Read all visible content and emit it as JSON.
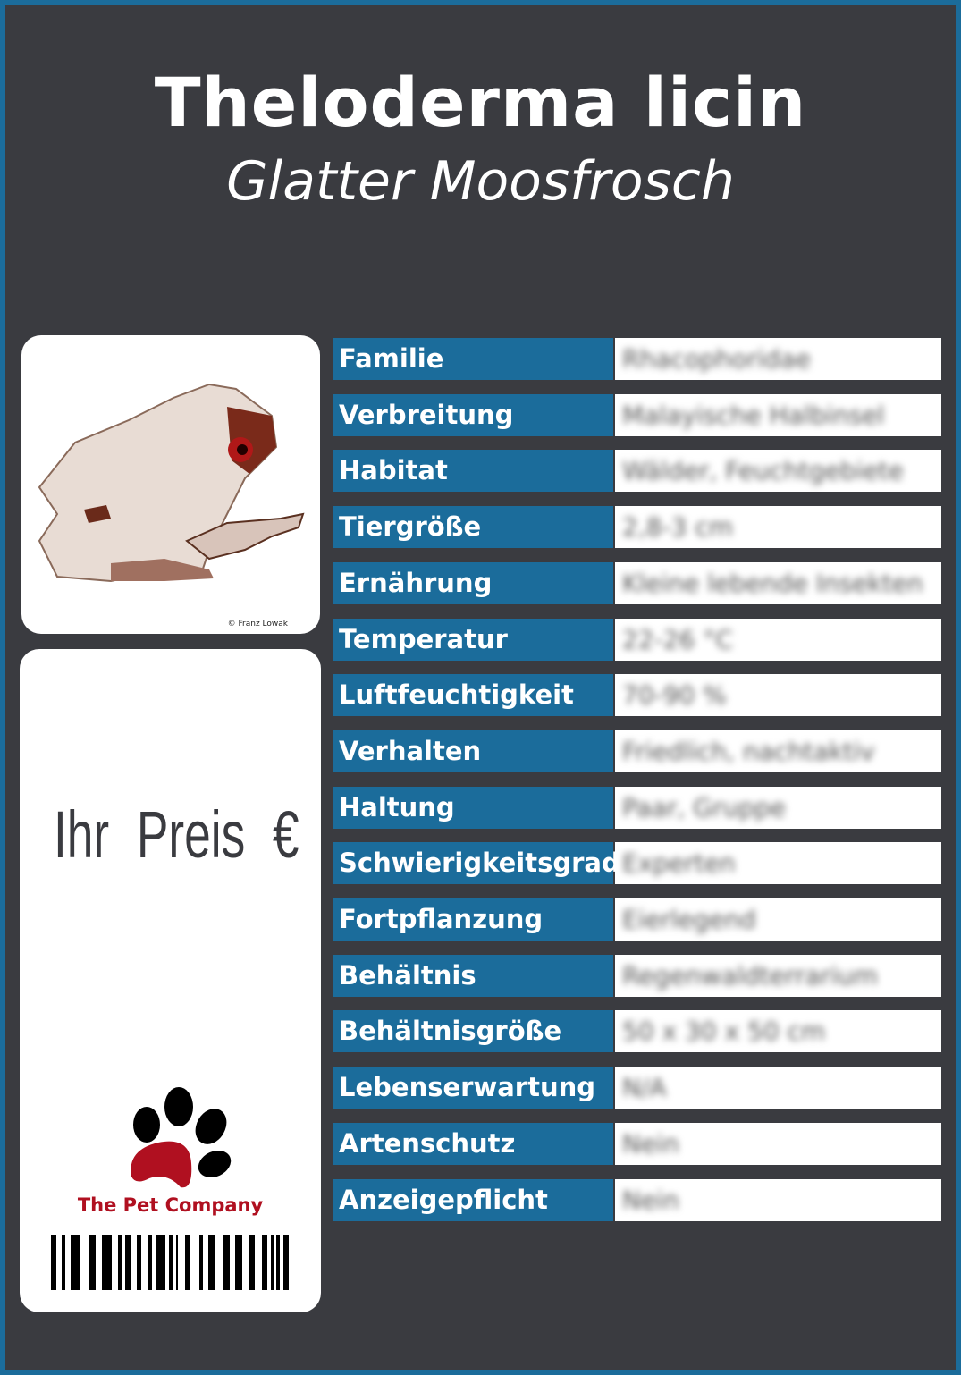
{
  "header": {
    "title": "Theloderma licin",
    "subtitle": "Glatter Moosfrosch"
  },
  "photo": {
    "credit": "© Franz Lowak"
  },
  "price": {
    "label": "Ihr Preis €"
  },
  "brand": {
    "name": "The Pet Company",
    "colors": {
      "red": "#b01020",
      "black": "#000000"
    }
  },
  "colors": {
    "accent": "#1b6c9b",
    "background": "#3a3b40"
  },
  "rows": [
    {
      "label": "Familie",
      "value": "Rhacophoridae"
    },
    {
      "label": "Verbreitung",
      "value": "Malayische Halbinsel"
    },
    {
      "label": "Habitat",
      "value": "Wälder, Feuchtgebiete"
    },
    {
      "label": "Tiergröße",
      "value": "2,8-3 cm"
    },
    {
      "label": "Ernährung",
      "value": "Kleine lebende Insekten"
    },
    {
      "label": "Temperatur",
      "value": "22-26 °C"
    },
    {
      "label": "Luftfeuchtigkeit",
      "value": "70-90 %"
    },
    {
      "label": "Verhalten",
      "value": "Friedlich, nachtaktiv"
    },
    {
      "label": "Haltung",
      "value": "Paar, Gruppe"
    },
    {
      "label": "Schwierigkeitsgrad",
      "value": "Experten"
    },
    {
      "label": "Fortpflanzung",
      "value": "Eierlegend"
    },
    {
      "label": "Behältnis",
      "value": "Regenwaldterrarium"
    },
    {
      "label": "Behältnisgröße",
      "value": "50 x 30 x 50 cm"
    },
    {
      "label": "Lebenserwartung",
      "value": "N/A"
    },
    {
      "label": "Artenschutz",
      "value": "Nein"
    },
    {
      "label": "Anzeigepflicht",
      "value": "Nein"
    }
  ]
}
